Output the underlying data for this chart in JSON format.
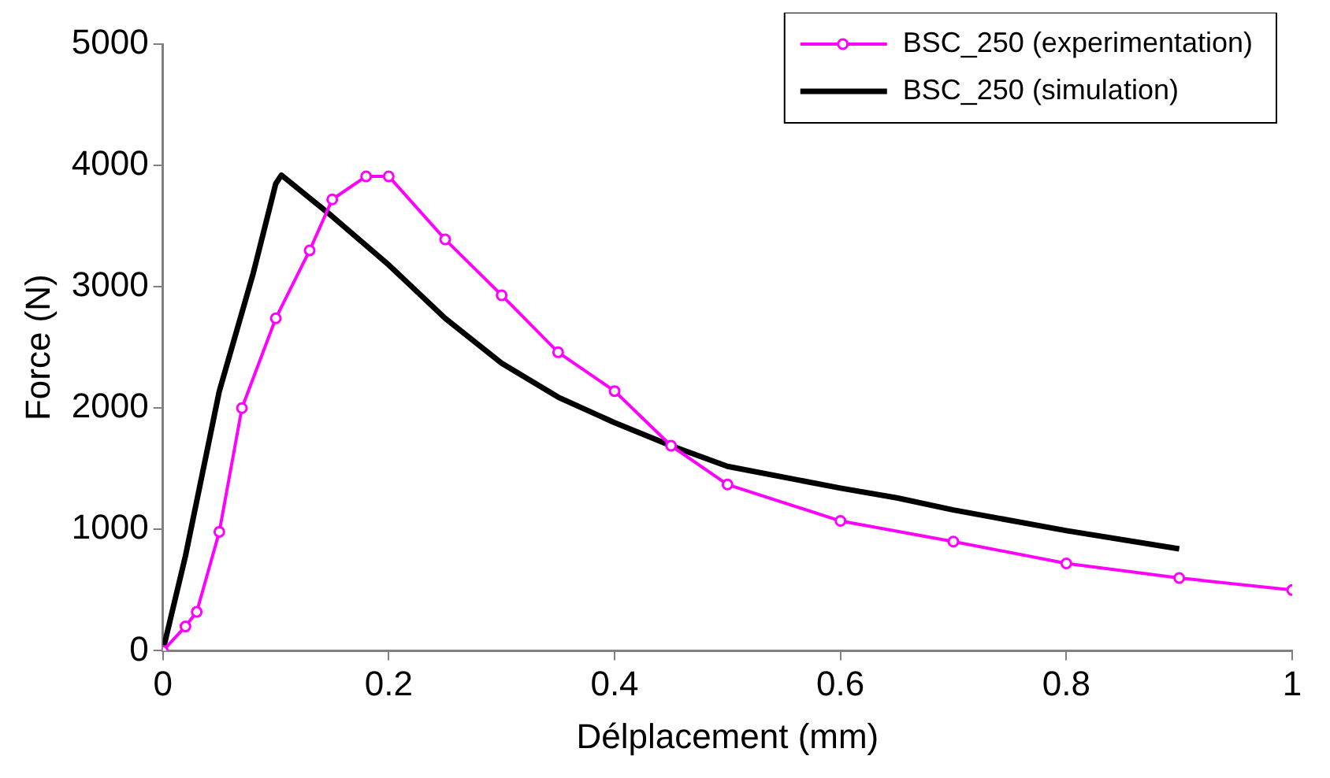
{
  "chart_data": {
    "type": "line",
    "xlabel": "Délplacement (mm)",
    "ylabel": "Force (N)",
    "xlim": [
      0,
      1
    ],
    "xticks": [
      0,
      0.2,
      0.4,
      0.6,
      0.8,
      1
    ],
    "ylim": [
      0,
      5000
    ],
    "yticks": [
      0,
      1000,
      2000,
      3000,
      4000,
      5000
    ],
    "grid": false,
    "legend": "top right",
    "series": [
      {
        "name": "BSC_250 (experimentation)",
        "color": "#ff00ff",
        "marker": "circle",
        "x": [
          0,
          0.02,
          0.03,
          0.05,
          0.07,
          0.1,
          0.13,
          0.15,
          0.18,
          0.2,
          0.25,
          0.3,
          0.35,
          0.4,
          0.45,
          0.5,
          0.6,
          0.7,
          0.8,
          0.9,
          1.0
        ],
        "values": [
          0,
          200,
          320,
          980,
          2000,
          2740,
          3300,
          3720,
          3910,
          3910,
          3390,
          2930,
          2460,
          2140,
          1690,
          1370,
          1070,
          900,
          720,
          600,
          500
        ]
      },
      {
        "name": "BSC_250 (simulation)",
        "color": "#000000",
        "marker": "none",
        "x": [
          0,
          0.02,
          0.05,
          0.08,
          0.1,
          0.105,
          0.15,
          0.2,
          0.25,
          0.3,
          0.35,
          0.4,
          0.45,
          0.5,
          0.6,
          0.65,
          0.7,
          0.8,
          0.9
        ],
        "values": [
          0,
          780,
          2140,
          3110,
          3850,
          3920,
          3580,
          3180,
          2740,
          2370,
          2090,
          1880,
          1690,
          1520,
          1340,
          1260,
          1160,
          990,
          840
        ]
      }
    ]
  }
}
